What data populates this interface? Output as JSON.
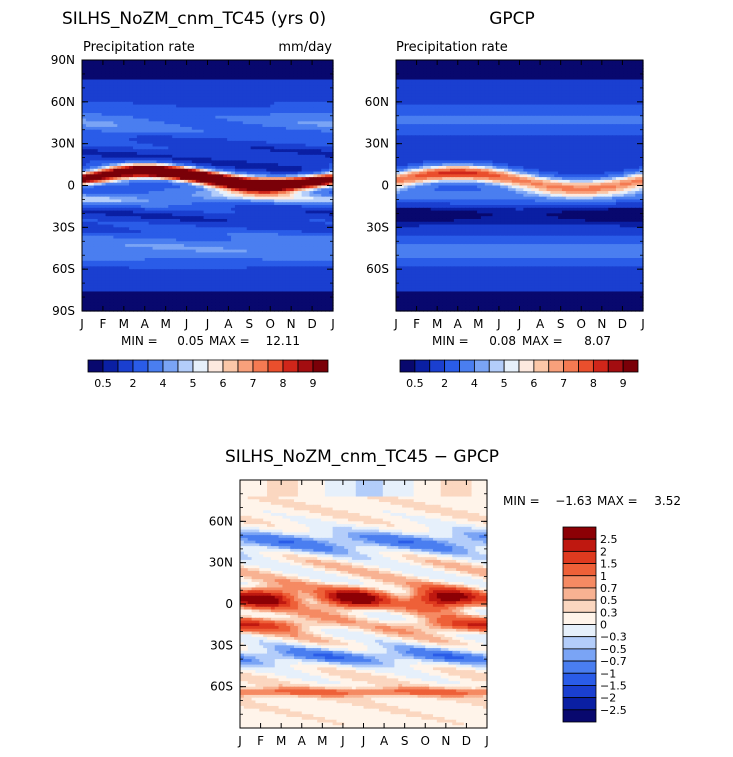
{
  "colors": {
    "palette_seq": [
      "#08086e",
      "#0a1fa3",
      "#1a3fd0",
      "#2a5ce8",
      "#4a7ef0",
      "#7aa4f5",
      "#b3cdfa",
      "#e6f0fb",
      "#fde9df",
      "#fbc7a8",
      "#f8a07b",
      "#f47a52",
      "#ea4f2d",
      "#d0261a",
      "#a30d10",
      "#7a0008"
    ],
    "palette_div": [
      "#08086e",
      "#0a1fa3",
      "#1a3fd0",
      "#2a5ce8",
      "#4a7ef0",
      "#7aa4f5",
      "#b3cdfa",
      "#e6f0fb",
      "#fff4ea",
      "#fbd7c0",
      "#f8b292",
      "#f58a63",
      "#ee6038",
      "#df3a1f",
      "#bf1810",
      "#8c0005"
    ]
  },
  "chart_data": [
    {
      "type": "heatmap",
      "title": "SILHS_NoZM_cnm_TC45 (yrs 0)",
      "subtitle_left": "Precipitation rate",
      "subtitle_right": "mm/day",
      "x_ticks": [
        "J",
        "F",
        "M",
        "A",
        "M",
        "J",
        "J",
        "A",
        "S",
        "O",
        "N",
        "D",
        "J"
      ],
      "y_ticks": [
        "90N",
        "60N",
        "30N",
        "0",
        "30S",
        "60S",
        "90S"
      ],
      "ylim": [
        -90,
        90
      ],
      "stats": {
        "min_label": "MIN =",
        "min": "0.05",
        "max_label": "MAX =",
        "max": "12.11"
      },
      "colorbar_labels": [
        "0.5",
        "2",
        "4",
        "5",
        "6",
        "7",
        "8",
        "9"
      ],
      "bands": [
        {
          "lat": 0,
          "value": 9
        },
        {
          "lat": 7,
          "value": 7.5
        },
        {
          "lat": -8,
          "value": 4
        },
        {
          "lat": 40,
          "value": 2.5
        },
        {
          "lat": -40,
          "value": 3
        },
        {
          "lat": 75,
          "value": 0.5
        },
        {
          "lat": -75,
          "value": 0.8
        }
      ]
    },
    {
      "type": "heatmap",
      "title": "GPCP",
      "subtitle_left": "Precipitation rate",
      "x_ticks": [
        "J",
        "F",
        "M",
        "A",
        "M",
        "J",
        "J",
        "A",
        "S",
        "O",
        "N",
        "D",
        "J"
      ],
      "y_ticks": [
        "60N",
        "30N",
        "0",
        "30S",
        "60S"
      ],
      "ylim": [
        -90,
        90
      ],
      "stats": {
        "min_label": "MIN =",
        "min": "0.08",
        "max_label": "MAX =",
        "max": "8.07"
      },
      "colorbar_labels": [
        "0.5",
        "2",
        "4",
        "5",
        "6",
        "7",
        "8",
        "9"
      ],
      "bands": [
        {
          "lat": 5,
          "value": 7
        },
        {
          "lat": -8,
          "value": 4
        },
        {
          "lat": 45,
          "value": 2.5
        },
        {
          "lat": -45,
          "value": 3
        },
        {
          "lat": 80,
          "value": 0.5
        },
        {
          "lat": -80,
          "value": 0.5
        }
      ]
    },
    {
      "type": "heatmap",
      "title": "SILHS_NoZM_cnm_TC45 − GPCP",
      "x_ticks": [
        "J",
        "F",
        "M",
        "A",
        "M",
        "J",
        "J",
        "A",
        "S",
        "O",
        "N",
        "D",
        "J"
      ],
      "y_ticks": [
        "60N",
        "30N",
        "0",
        "30S",
        "60S"
      ],
      "ylim": [
        -90,
        90
      ],
      "stats": {
        "min_label": "MIN =",
        "min": "−1.63",
        "max_label": "MAX =",
        "max": "3.52"
      },
      "colorbar_labels": [
        "2.5",
        "2",
        "1.5",
        "1",
        "0.7",
        "0.5",
        "0.3",
        "0",
        "−0.3",
        "−0.5",
        "−0.7",
        "−1",
        "−1.5",
        "−2",
        "−2.5"
      ],
      "bands": [
        {
          "lat": 5,
          "value": 1.5
        },
        {
          "lat": -15,
          "value": 1.0
        },
        {
          "lat": 25,
          "value": 0.5
        },
        {
          "lat": 45,
          "value": -0.7
        },
        {
          "lat": -40,
          "value": -0.5
        },
        {
          "lat": -60,
          "value": 0.7
        }
      ]
    }
  ]
}
